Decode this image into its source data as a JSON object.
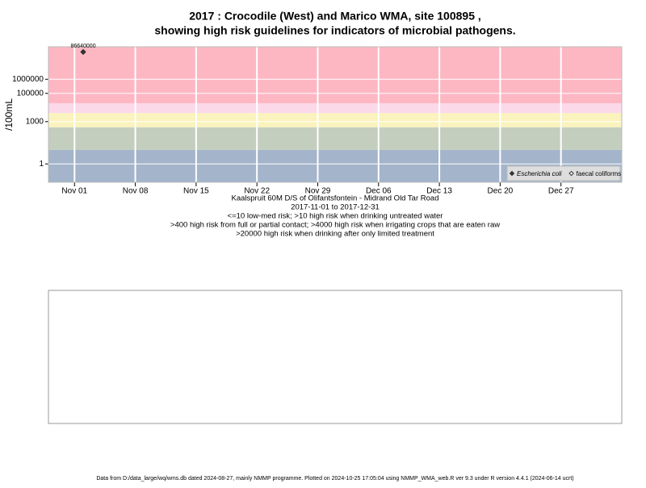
{
  "chart_data": {
    "type": "scatter",
    "title": [
      "2017 : Crocodile (West) and Marico WMA, site 100895 ,",
      "showing high risk guidelines for indicators of microbial pathogens."
    ],
    "y_label": "/100mL",
    "notes": [
      "Kaalspruit 60M D/S of Olifantsfontein - Midrand Old Tar Road",
      "2017-11-01 to 2017-12-31",
      "<=10 low-med risk; >10 high risk when drinking untreated water",
      ">400 high risk from full or partial contact; >4000 high risk when irrigating crops that are eaten raw",
      ">20000 high risk when drinking after only limited treatment"
    ],
    "footer": "Data from D:/data_large/wq/wms.db dated 2024-08-27, mainly NMMP programme. Plotted on 2024-10-25 17:05:04 using NMMP_WMA_web.R ver 9.3 under R version 4.4.1 (2024-06-14 ucrt)",
    "x": [
      "2017-11-02"
    ],
    "series": [
      {
        "name": "Escherichia coli",
        "color": "#333333",
        "marker": "filled-diamond",
        "values": [
          86640000
        ],
        "value_labels": [
          "86640000"
        ]
      },
      {
        "name": "faecal coliforms",
        "color": "#333333",
        "marker": "open-diamond",
        "values": [
          null
        ]
      }
    ],
    "log_y": true,
    "ylim": [
      0.05,
      200000000
    ],
    "yticks": [
      1,
      1000,
      100000,
      1000000
    ],
    "xlim": [
      "2017-10-29",
      "2018-01-03"
    ],
    "xticks": [
      {
        "value": "2017-11-01",
        "label": "Nov 01"
      },
      {
        "value": "2017-11-08",
        "label": "Nov 08"
      },
      {
        "value": "2017-11-15",
        "label": "Nov 15"
      },
      {
        "value": "2017-11-22",
        "label": "Nov 22"
      },
      {
        "value": "2017-11-29",
        "label": "Nov 29"
      },
      {
        "value": "2017-12-06",
        "label": "Dec 06"
      },
      {
        "value": "2017-12-13",
        "label": "Dec 13"
      },
      {
        "value": "2017-12-20",
        "label": "Dec 20"
      },
      {
        "value": "2017-12-27",
        "label": "Dec 27"
      }
    ],
    "band_limits": [
      10,
      400,
      4000,
      20000
    ],
    "band_colors": [
      "#a3b4cb",
      "#c4cebf",
      "#fbf3bd",
      "#fcd9e9",
      "#fdb7c3"
    ],
    "grid": true,
    "legend_position": "bottom-right"
  }
}
